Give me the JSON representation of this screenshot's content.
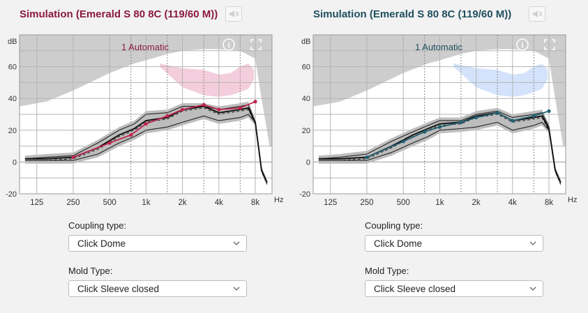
{
  "panels": [
    {
      "title": "Simulation (Emerald S 80 8C (119/60 M))",
      "program_label": "1 Automatic",
      "accent": "#8b1a3e",
      "light": "#f3c9d8",
      "target_color": "#c0254f",
      "coupling_label": "Coupling type:",
      "coupling_value": "Click Dome",
      "mold_label": "Mold Type:",
      "mold_value": "Click Sleeve closed",
      "chart_data": {
        "type": "line",
        "ylabel": "dB",
        "xunit": "Hz",
        "x_ticks": [
          "125",
          "250",
          "500",
          "1k",
          "2k",
          "4k",
          "8k"
        ],
        "y_ticks": [
          "60",
          "40",
          "20",
          "0",
          "-20"
        ],
        "ylim": [
          -20,
          80
        ],
        "series": [
          {
            "role": "target",
            "x": [
              250,
              500,
              750,
              1000,
              1500,
              2000,
              3000,
              4000,
              6000,
              8000
            ],
            "y": [
              3,
              12,
              17,
              24,
              29,
              33,
              36,
              33,
              34,
              38
            ]
          },
          {
            "role": "upper",
            "x": [
              100,
              150,
              250,
              400,
              600,
              800,
              1000,
              1500,
              2000,
              3000,
              4000,
              6000,
              7000,
              8000,
              9000,
              10000
            ],
            "y": [
              2,
              3,
              4,
              12,
              20,
              24,
              30,
              31,
              35,
              35,
              33,
              35,
              36,
              25,
              -5,
              -13
            ]
          },
          {
            "role": "lower",
            "x": [
              100,
              150,
              250,
              400,
              600,
              800,
              1000,
              1500,
              2000,
              3000,
              4000,
              6000,
              7000,
              8000,
              9000,
              10000
            ],
            "y": [
              1,
              1,
              1,
              5,
              12,
              16,
              20,
              22,
              25,
              29,
              26,
              28,
              30,
              25,
              -5,
              -13
            ]
          },
          {
            "role": "middle",
            "x": [
              100,
              150,
              250,
              400,
              600,
              800,
              1000,
              1500,
              2000,
              3000,
              4000,
              6000,
              7000,
              8000,
              9000,
              10000
            ],
            "y": [
              2,
              2,
              3,
              9,
              17,
              21,
              26,
              28,
              33,
              35,
              31,
              33,
              34,
              25,
              -5,
              -13
            ]
          }
        ]
      }
    },
    {
      "title": "Simulation (Emerald S 80 8C (119/60 M))",
      "program_label": "1 Automatic",
      "accent": "#1f4f5f",
      "light": "#cfe0fb",
      "target_color": "#1f5f70",
      "coupling_label": "Coupling type:",
      "coupling_value": "Click Dome",
      "mold_label": "Mold Type:",
      "mold_value": "Click Sleeve closed",
      "chart_data": {
        "type": "line",
        "ylabel": "dB",
        "xunit": "Hz",
        "x_ticks": [
          "125",
          "250",
          "500",
          "1k",
          "2k",
          "4k",
          "8k"
        ],
        "y_ticks": [
          "60",
          "40",
          "20",
          "0",
          "-20"
        ],
        "ylim": [
          -20,
          80
        ],
        "series": [
          {
            "role": "target",
            "x": [
              250,
              500,
              750,
              1000,
              1500,
              2000,
              3000,
              4000,
              6000,
              8000
            ],
            "y": [
              3,
              13,
              19,
              22,
              25,
              28,
              31,
              26,
              29,
              32
            ]
          },
          {
            "role": "upper",
            "x": [
              100,
              150,
              250,
              400,
              600,
              800,
              1000,
              1500,
              2000,
              3000,
              4000,
              6000,
              7000,
              8000,
              9000,
              10000
            ],
            "y": [
              2,
              3,
              5,
              13,
              19,
              23,
              26,
              26,
              30,
              32,
              28,
              30,
              31,
              22,
              -5,
              -13
            ]
          },
          {
            "role": "lower",
            "x": [
              100,
              150,
              250,
              400,
              600,
              800,
              1000,
              1500,
              2000,
              3000,
              4000,
              6000,
              7000,
              8000,
              9000,
              10000
            ],
            "y": [
              1,
              1,
              1,
              6,
              12,
              16,
              20,
              21,
              22,
              25,
              20,
              23,
              25,
              20,
              -5,
              -13
            ]
          },
          {
            "role": "middle",
            "x": [
              100,
              150,
              250,
              400,
              600,
              800,
              1000,
              1500,
              2000,
              3000,
              4000,
              6000,
              7000,
              8000,
              9000,
              10000
            ],
            "y": [
              2,
              2,
              3,
              10,
              17,
              21,
              24,
              25,
              29,
              31,
              26,
              28,
              29,
              21,
              -5,
              -13
            ]
          }
        ]
      }
    }
  ]
}
